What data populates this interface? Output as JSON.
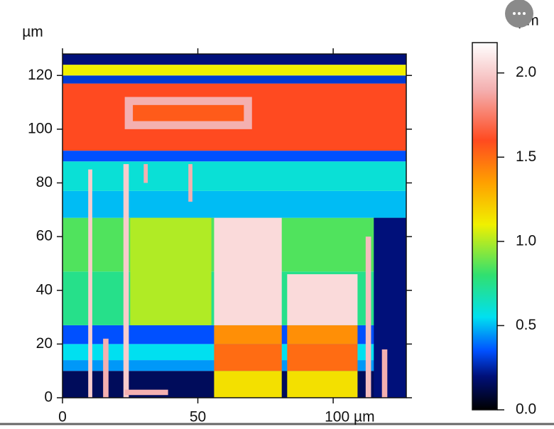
{
  "chart_data": {
    "type": "heatmap",
    "x_unit": "µm",
    "y_unit": "µm",
    "z_unit": "µm",
    "xlim": [
      0,
      127
    ],
    "ylim": [
      0,
      128
    ],
    "zlim": [
      0,
      2.18
    ],
    "xticks": [
      0,
      50,
      {
        "value": 100,
        "label": "100 µm"
      }
    ],
    "yticks": [
      0,
      20,
      40,
      60,
      80,
      100,
      120
    ],
    "zticks": [
      {
        "value": 0,
        "label": "0.0"
      },
      {
        "value": 0.5,
        "label": "0.5"
      },
      {
        "value": 1,
        "label": "1.0"
      },
      {
        "value": 1.5,
        "label": "1.5"
      },
      {
        "value": 2,
        "label": "2.0"
      }
    ],
    "colormap": [
      [
        0,
        "#000000"
      ],
      [
        0.2,
        "#00107a"
      ],
      [
        0.35,
        "#0050ff"
      ],
      [
        0.55,
        "#00e0f0"
      ],
      [
        0.8,
        "#30e070"
      ],
      [
        1.1,
        "#f0f000"
      ],
      [
        1.35,
        "#ffa000"
      ],
      [
        1.6,
        "#ff4a20"
      ],
      [
        1.9,
        "#f4b0b0"
      ],
      [
        2.18,
        "#ffffff"
      ]
    ],
    "regions": [
      {
        "x": [
          0,
          127
        ],
        "y": [
          0,
          10
        ],
        "value": 0.15
      },
      {
        "x": [
          0,
          127
        ],
        "y": [
          10,
          14
        ],
        "value": 0.45
      },
      {
        "x": [
          0,
          127
        ],
        "y": [
          14,
          20
        ],
        "value": 0.55
      },
      {
        "x": [
          0,
          127
        ],
        "y": [
          20,
          27
        ],
        "value": 0.35
      },
      {
        "x": [
          0,
          127
        ],
        "y": [
          27,
          47
        ],
        "value": 0.75
      },
      {
        "x": [
          0,
          127
        ],
        "y": [
          47,
          67
        ],
        "value": 0.85
      },
      {
        "x": [
          0,
          127
        ],
        "y": [
          67,
          77
        ],
        "value": 0.5
      },
      {
        "x": [
          0,
          127
        ],
        "y": [
          77,
          88
        ],
        "value": 0.6
      },
      {
        "x": [
          0,
          127
        ],
        "y": [
          88,
          92
        ],
        "value": 0.35
      },
      {
        "x": [
          0,
          127
        ],
        "y": [
          92,
          117
        ],
        "value": 1.6
      },
      {
        "x": [
          0,
          127
        ],
        "y": [
          117,
          120
        ],
        "value": 0.3
      },
      {
        "x": [
          0,
          127
        ],
        "y": [
          120,
          124
        ],
        "value": 1.1
      },
      {
        "x": [
          0,
          127
        ],
        "y": [
          124,
          128
        ],
        "value": 0.2
      },
      {
        "x": [
          115,
          127
        ],
        "y": [
          0,
          67
        ],
        "value": 0.2
      },
      {
        "x": [
          25,
          55
        ],
        "y": [
          27,
          67
        ],
        "value": 1.0
      },
      {
        "x": [
          23,
          70
        ],
        "y": [
          100,
          112
        ],
        "value": 1.9
      },
      {
        "x": [
          26,
          67
        ],
        "y": [
          103,
          109
        ],
        "value": 1.55
      },
      {
        "x": [
          56,
          81
        ],
        "y": [
          0,
          10
        ],
        "value": 1.15
      },
      {
        "x": [
          56,
          81
        ],
        "y": [
          10,
          20
        ],
        "value": 1.5
      },
      {
        "x": [
          56,
          81
        ],
        "y": [
          20,
          27
        ],
        "value": 1.4
      },
      {
        "x": [
          56,
          81
        ],
        "y": [
          27,
          67
        ],
        "value": 2.05
      },
      {
        "x": [
          83,
          109
        ],
        "y": [
          0,
          10
        ],
        "value": 1.15
      },
      {
        "x": [
          83,
          109
        ],
        "y": [
          10,
          20
        ],
        "value": 1.5
      },
      {
        "x": [
          83,
          109
        ],
        "y": [
          20,
          27
        ],
        "value": 1.4
      },
      {
        "x": [
          83,
          109
        ],
        "y": [
          27,
          46
        ],
        "value": 2.05
      },
      {
        "x": [
          9.5,
          11
        ],
        "y": [
          0,
          85
        ],
        "value": 2.0
      },
      {
        "x": [
          22.5,
          24.5
        ],
        "y": [
          0,
          87
        ],
        "value": 2.0
      },
      {
        "x": [
          15,
          17
        ],
        "y": [
          0,
          22
        ],
        "value": 1.9
      },
      {
        "x": [
          112,
          114
        ],
        "y": [
          0,
          60
        ],
        "value": 1.95
      },
      {
        "x": [
          118,
          120
        ],
        "y": [
          0,
          18
        ],
        "value": 1.9
      },
      {
        "x": [
          30,
          31.5
        ],
        "y": [
          80,
          87
        ],
        "value": 1.9
      },
      {
        "x": [
          46.5,
          48
        ],
        "y": [
          73,
          87
        ],
        "value": 1.9
      },
      {
        "x": [
          23,
          39
        ],
        "y": [
          1,
          3
        ],
        "value": 1.9
      }
    ]
  }
}
